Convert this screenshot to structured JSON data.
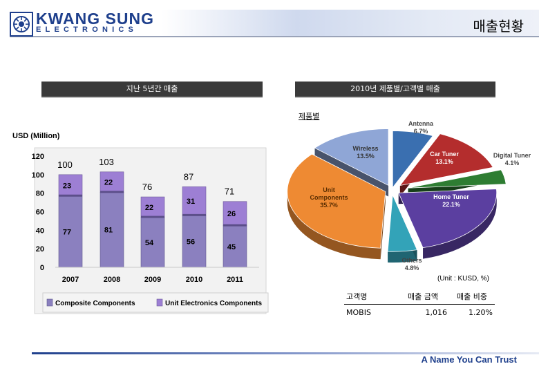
{
  "brand": {
    "line1": "KWANG SUNG",
    "line2": "ELECTRONICS",
    "tagline": "A Name You Can Trust"
  },
  "page_title": "매출현황",
  "sections": {
    "left_header": "지난 5년간 매출",
    "right_header": "2010년 제품별/고객별 매출",
    "product_label": "제품별"
  },
  "units": {
    "usd": "USD (Million)",
    "kusd": "(Unit : KUSD, %)"
  },
  "colors": {
    "composite": "#8b80bf",
    "unit_electronics": "#9d7fd4",
    "header_bar": "#3a3a3a",
    "brand": "#1e3f8c"
  },
  "chart_data": [
    {
      "type": "bar",
      "stacked": true,
      "categories": [
        "2007",
        "2008",
        "2009",
        "2010",
        "2011"
      ],
      "series": [
        {
          "name": "Composite Components",
          "values": [
            77,
            81,
            54,
            56,
            45
          ]
        },
        {
          "name": "Unit Electronics Components",
          "values": [
            23,
            22,
            22,
            31,
            26
          ]
        }
      ],
      "totals": [
        100,
        103,
        76,
        87,
        71
      ],
      "ylim": [
        0,
        120
      ],
      "yticks": [
        0,
        20,
        40,
        60,
        80,
        100,
        120
      ],
      "legend_position": "bottom",
      "grid": false
    },
    {
      "type": "pie",
      "style": "3d-exploded",
      "slices": [
        {
          "name": "Antenna",
          "value": 6.7,
          "label": "6.7%",
          "color": "#3a6fb0"
        },
        {
          "name": "Car Tuner",
          "value": 13.1,
          "label": "13.1%",
          "color": "#b42d2d"
        },
        {
          "name": "Digital Tuner",
          "value": 4.1,
          "label": "4.1%",
          "color": "#2e7d32"
        },
        {
          "name": "Home Tuner",
          "value": 22.1,
          "label": "22.1%",
          "color": "#5b3fa0"
        },
        {
          "name": "Others",
          "value": 4.8,
          "label": "4.8%",
          "color": "#33a3b8"
        },
        {
          "name": "Unit Components",
          "value": 35.7,
          "label": "35.7%",
          "color": "#ee8a33"
        },
        {
          "name": "Wireless",
          "value": 13.5,
          "label": "13.5%",
          "color": "#8fa6d6"
        }
      ]
    }
  ],
  "customer_table": {
    "headers": [
      "고객명",
      "매출 금액",
      "매출 비중"
    ],
    "rows": [
      [
        "MOBIS",
        "1,016",
        "1.20%"
      ]
    ]
  }
}
